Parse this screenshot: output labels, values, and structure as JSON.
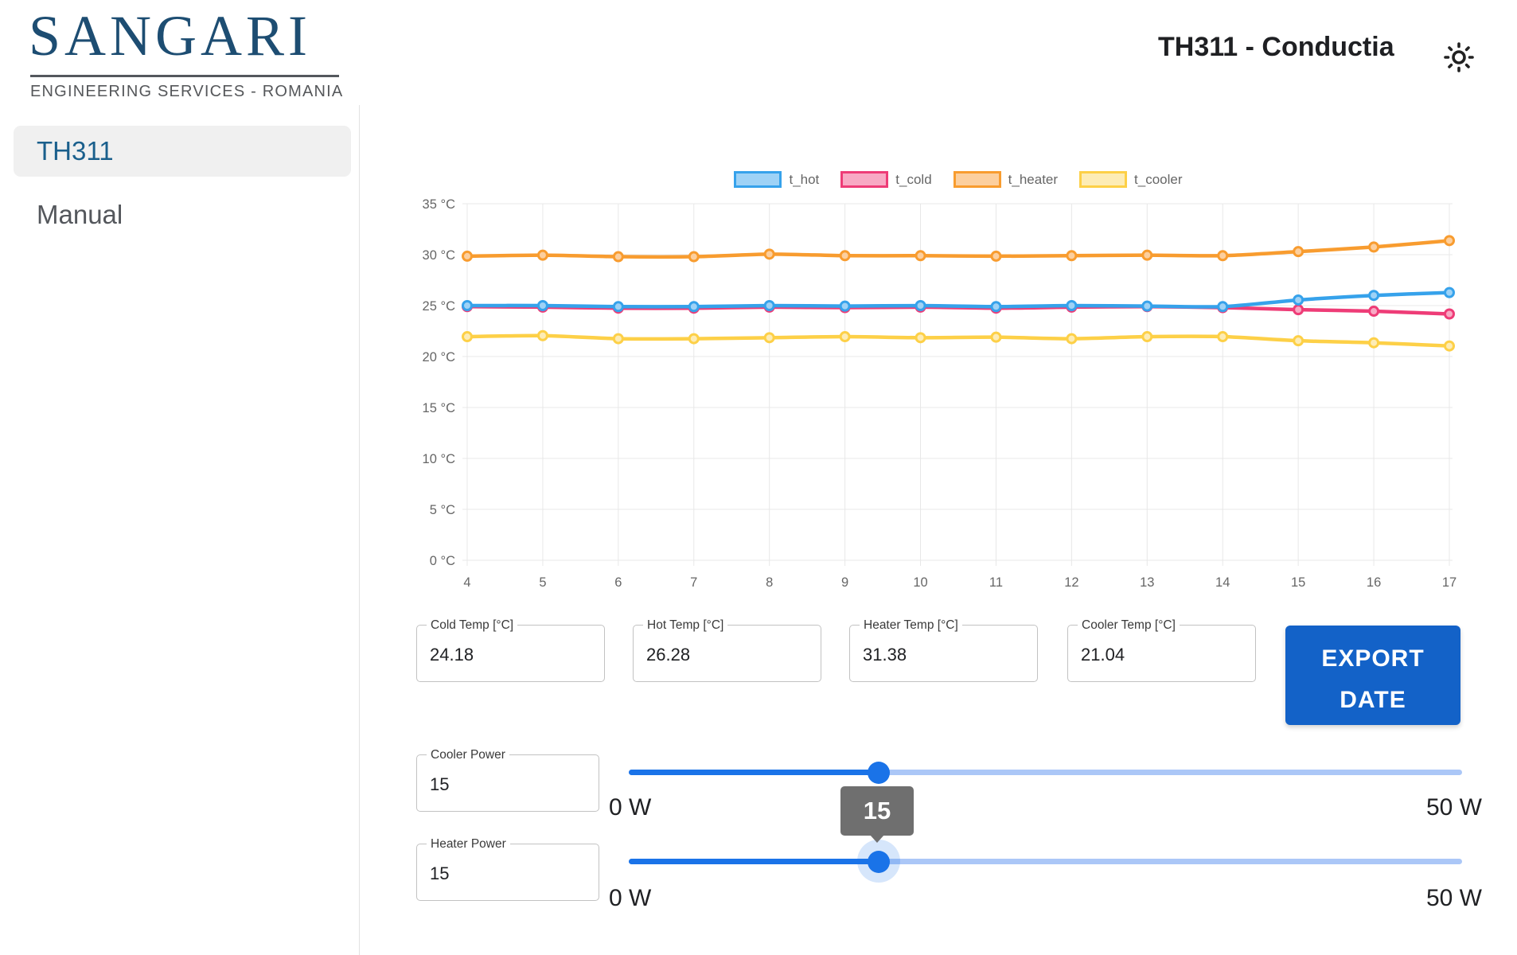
{
  "header": {
    "logo": {
      "title": "SANGARI",
      "subtitle": "ENGINEERING SERVICES - ROMANIA"
    },
    "page_title": "TH311 - Conductia",
    "theme_icon": "sun-icon"
  },
  "sidebar": {
    "items": [
      {
        "label": "TH311",
        "active": true
      },
      {
        "label": "Manual",
        "active": false
      }
    ]
  },
  "chart_data": {
    "type": "line",
    "x": [
      4,
      5,
      6,
      7,
      8,
      9,
      10,
      11,
      12,
      13,
      14,
      15,
      16,
      17
    ],
    "xlim": [
      4,
      17
    ],
    "ylim": [
      0,
      35
    ],
    "yticks": [
      0,
      5,
      10,
      15,
      20,
      25,
      30,
      35
    ],
    "ytick_suffix": " °C",
    "grid": true,
    "legend_position": "top",
    "series": [
      {
        "name": "t_hot",
        "color": "#36a2eb",
        "fill": "#9ed2f6",
        "values": [
          25.0,
          25.0,
          24.9,
          24.9,
          25.0,
          24.95,
          25.0,
          24.9,
          25.0,
          24.95,
          24.9,
          25.55,
          26.0,
          26.28
        ]
      },
      {
        "name": "t_cold",
        "color": "#ee3c77",
        "fill": "#f8a9c4",
        "values": [
          24.9,
          24.85,
          24.75,
          24.75,
          24.85,
          24.8,
          24.85,
          24.75,
          24.85,
          24.9,
          24.8,
          24.6,
          24.45,
          24.18
        ]
      },
      {
        "name": "t_heater",
        "color": "#f89c2f",
        "fill": "#fccf9e",
        "values": [
          29.85,
          29.95,
          29.8,
          29.8,
          30.05,
          29.9,
          29.9,
          29.85,
          29.9,
          29.95,
          29.9,
          30.3,
          30.75,
          31.38
        ]
      },
      {
        "name": "t_cooler",
        "color": "#fdd047",
        "fill": "#fdecb5",
        "values": [
          21.95,
          22.05,
          21.75,
          21.75,
          21.85,
          21.95,
          21.85,
          21.9,
          21.75,
          21.95,
          21.95,
          21.55,
          21.35,
          21.04
        ]
      }
    ],
    "draw_order": [
      2,
      3,
      1,
      0
    ]
  },
  "readouts": [
    {
      "label": "Cold Temp [°C]",
      "value": "24.18"
    },
    {
      "label": "Hot Temp [°C]",
      "value": "26.28"
    },
    {
      "label": "Heater Temp [°C]",
      "value": "31.38"
    },
    {
      "label": "Cooler Temp [°C]",
      "value": "21.04"
    }
  ],
  "export_button": {
    "line1": "EXPORT",
    "line2": "DATE"
  },
  "sliders": [
    {
      "label": "Cooler Power",
      "value": "15",
      "min": 0,
      "max": 50,
      "min_label": "0 W",
      "max_label": "50 W",
      "tooltip_visible": false
    },
    {
      "label": "Heater Power",
      "value": "15",
      "min": 0,
      "max": 50,
      "min_label": "0 W",
      "max_label": "50 W",
      "tooltip_visible": true
    }
  ],
  "colors": {
    "logo_blue": "#1d4d72",
    "sidebar_active_text": "#1a5f8c",
    "sidebar_active_bg": "#f0f0f0",
    "accent_blue": "#1a73e8",
    "slider_inactive_track": "#abc7f7",
    "button_blue": "#1362c8",
    "tooltip_gray": "#6f6f6f",
    "axis_text_gray": "#666666"
  }
}
